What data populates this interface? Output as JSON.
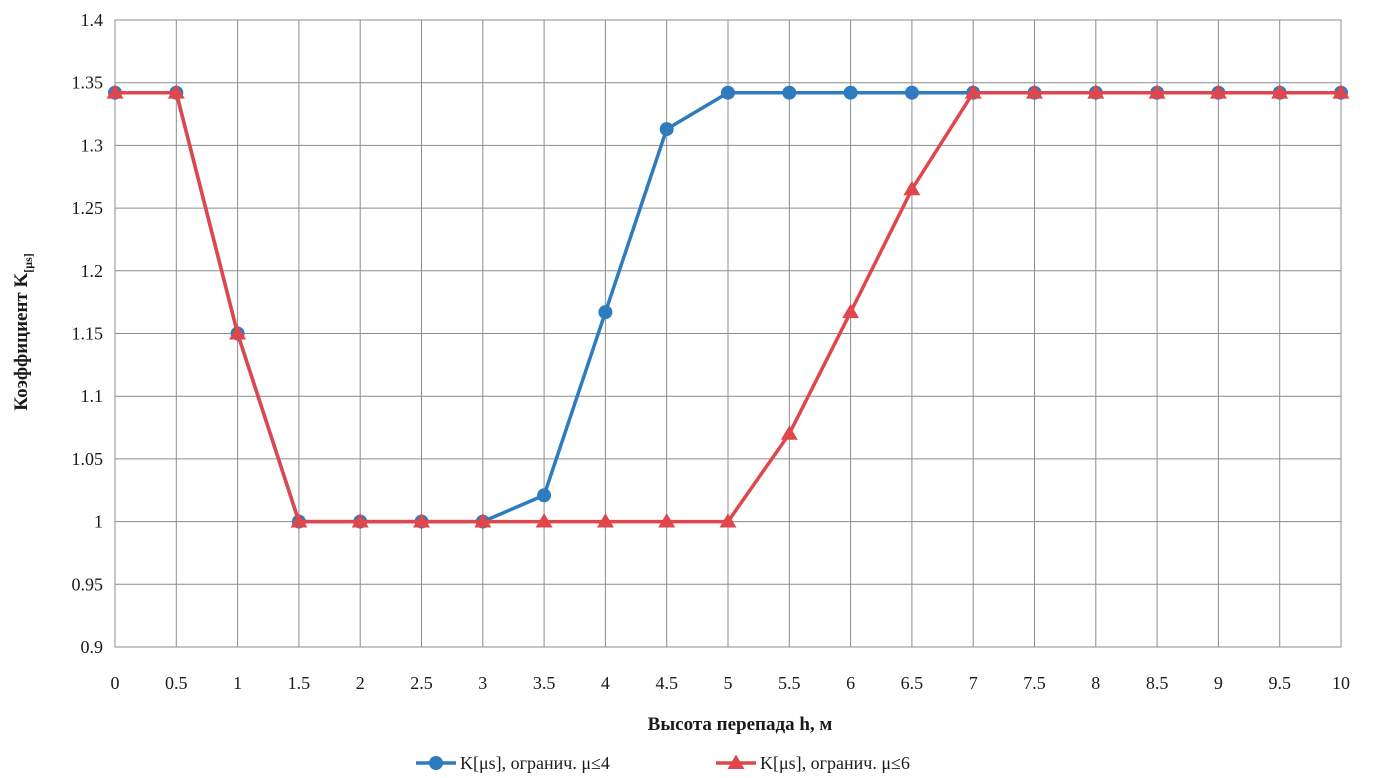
{
  "chart_data": {
    "type": "line",
    "xlabel": "Высота перепада h, м",
    "ylabel_main": "Коэффициент K",
    "ylabel_sub": "[μs]",
    "x": [
      0,
      0.5,
      1,
      1.5,
      2,
      2.5,
      3,
      3.5,
      4,
      4.5,
      5,
      5.5,
      6,
      6.5,
      7,
      7.5,
      8,
      8.5,
      9,
      9.5,
      10
    ],
    "x_tick_labels": [
      "0",
      "0.5",
      "1",
      "1.5",
      "2",
      "2.5",
      "3",
      "3.5",
      "4",
      "4.5",
      "5",
      "5.5",
      "6",
      "6.5",
      "7",
      "7.5",
      "8",
      "8.5",
      "9",
      "9.5",
      "10"
    ],
    "xlim": [
      0,
      10
    ],
    "ylim": [
      0.9,
      1.4
    ],
    "y_ticks": [
      0.9,
      0.95,
      1,
      1.05,
      1.1,
      1.15,
      1.2,
      1.25,
      1.3,
      1.35,
      1.4
    ],
    "y_tick_labels": [
      "0.9",
      "0.95",
      "1",
      "1.05",
      "1.1",
      "1.15",
      "1.2",
      "1.25",
      "1.3",
      "1.35",
      "1.4"
    ],
    "grid": true,
    "legend_position": "bottom",
    "series": [
      {
        "name": "K[μs], огранич. μ≤4",
        "color": "#2E7BBF",
        "marker": "circle",
        "values": [
          1.342,
          1.342,
          1.15,
          1.0,
          1.0,
          1.0,
          1.0,
          1.021,
          1.167,
          1.313,
          1.342,
          1.342,
          1.342,
          1.342,
          1.342,
          1.342,
          1.342,
          1.342,
          1.342,
          1.342,
          1.342
        ]
      },
      {
        "name": "K[μs], огранич. μ≤6",
        "color": "#E0474C",
        "marker": "triangle",
        "values": [
          1.342,
          1.342,
          1.15,
          1.0,
          1.0,
          1.0,
          1.0,
          1.0,
          1.0,
          1.0,
          1.0,
          1.07,
          1.167,
          1.265,
          1.342,
          1.342,
          1.342,
          1.342,
          1.342,
          1.342,
          1.342
        ]
      }
    ]
  }
}
